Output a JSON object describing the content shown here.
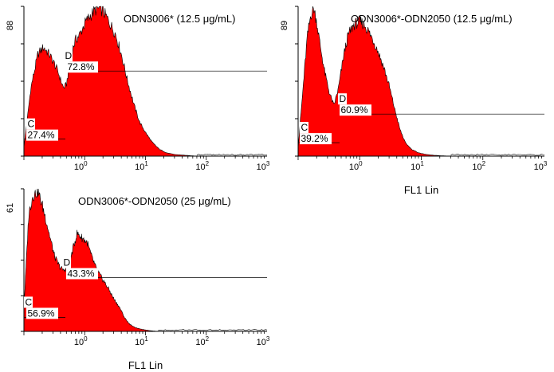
{
  "figure": {
    "colors": {
      "fill": "#ff0000",
      "outline": "#000000",
      "gate_label_bg": "#ffffff",
      "axes": "#000000"
    }
  },
  "chart_data": [
    {
      "type": "area",
      "title": "ODN3006* (12.5 μg/mL)",
      "xlabel": "",
      "ylabel": "",
      "xscale": "log",
      "xlim": [
        0.1,
        1000
      ],
      "ylim": [
        0,
        88
      ],
      "ymax_label": "88",
      "x_ticks": [
        {
          "base": "10",
          "exp": "0"
        },
        {
          "base": "10",
          "exp": "1"
        },
        {
          "base": "10",
          "exp": "2"
        },
        {
          "base": "10",
          "exp": "3"
        }
      ],
      "gates": [
        {
          "label": "C",
          "percent": "27.4%",
          "y": 10
        },
        {
          "label": "D",
          "percent": "72.8%",
          "y": 50
        }
      ],
      "series": [
        {
          "name": "histogram",
          "x": [
            0.1,
            0.13,
            0.17,
            0.21,
            0.26,
            0.31,
            0.36,
            0.4,
            0.45,
            0.5,
            0.6,
            0.7,
            0.85,
            1,
            1.2,
            1.5,
            1.8,
            2.1,
            2.6,
            3.2,
            4,
            5,
            6.5,
            8,
            10,
            13,
            17,
            22,
            30,
            45,
            70
          ],
          "y": [
            5,
            40,
            60,
            64,
            60,
            55,
            50,
            45,
            40,
            42,
            60,
            68,
            72,
            78,
            82,
            86,
            87,
            84,
            78,
            72,
            60,
            45,
            30,
            20,
            14,
            8,
            4,
            2,
            1,
            0.5,
            0
          ]
        }
      ]
    },
    {
      "type": "area",
      "title": "ODN3006*-ODN2050 (12.5 μg/mL)",
      "xlabel": "FL1 Lin",
      "ylabel": "",
      "xscale": "log",
      "xlim": [
        0.1,
        1000
      ],
      "ylim": [
        0,
        89
      ],
      "ymax_label": "89",
      "x_ticks": [
        {
          "base": "10",
          "exp": "0"
        },
        {
          "base": "10",
          "exp": "1"
        },
        {
          "base": "10",
          "exp": "2"
        },
        {
          "base": "10",
          "exp": "3"
        }
      ],
      "gates": [
        {
          "label": "C",
          "percent": "39.2%",
          "y": 8
        },
        {
          "label": "D",
          "percent": "60.9%",
          "y": 25
        }
      ],
      "series": [
        {
          "name": "histogram",
          "x": [
            0.1,
            0.12,
            0.14,
            0.16,
            0.18,
            0.2,
            0.23,
            0.27,
            0.32,
            0.38,
            0.45,
            0.55,
            0.65,
            0.8,
            1,
            1.2,
            1.4,
            1.7,
            2,
            2.5,
            3,
            3.7,
            4.5,
            5.5,
            7,
            9,
            12,
            16,
            22,
            30
          ],
          "y": [
            5,
            40,
            70,
            84,
            88,
            80,
            65,
            50,
            38,
            30,
            40,
            60,
            72,
            78,
            80,
            78,
            74,
            68,
            62,
            52,
            42,
            28,
            16,
            8,
            4,
            2,
            1,
            0.5,
            0.2,
            0
          ]
        }
      ]
    },
    {
      "type": "area",
      "title": "ODN3006*-ODN2050 (25 μg/mL)",
      "xlabel": "FL1 Lin",
      "ylabel": "",
      "xscale": "log",
      "xlim": [
        0.1,
        1000
      ],
      "ylim": [
        0,
        61
      ],
      "ymax_label": "61",
      "x_ticks": [
        {
          "base": "10",
          "exp": "0"
        },
        {
          "base": "10",
          "exp": "1"
        },
        {
          "base": "10",
          "exp": "2"
        },
        {
          "base": "10",
          "exp": "3"
        }
      ],
      "gates": [
        {
          "label": "C",
          "percent": "56.9%",
          "y": 6
        },
        {
          "label": "D",
          "percent": "43.3%",
          "y": 23
        }
      ],
      "series": [
        {
          "name": "histogram",
          "x": [
            0.1,
            0.12,
            0.14,
            0.17,
            0.2,
            0.23,
            0.27,
            0.32,
            0.38,
            0.45,
            0.55,
            0.65,
            0.75,
            0.9,
            1.1,
            1.3,
            1.6,
            2,
            2.5,
            3,
            3.8,
            4.5,
            5.5,
            7,
            9,
            12,
            16
          ],
          "y": [
            10,
            50,
            58,
            60,
            54,
            48,
            40,
            32,
            28,
            26,
            28,
            36,
            42,
            40,
            38,
            32,
            26,
            22,
            18,
            14,
            10,
            6,
            3,
            1.5,
            0.8,
            0.3,
            0
          ]
        }
      ]
    }
  ]
}
